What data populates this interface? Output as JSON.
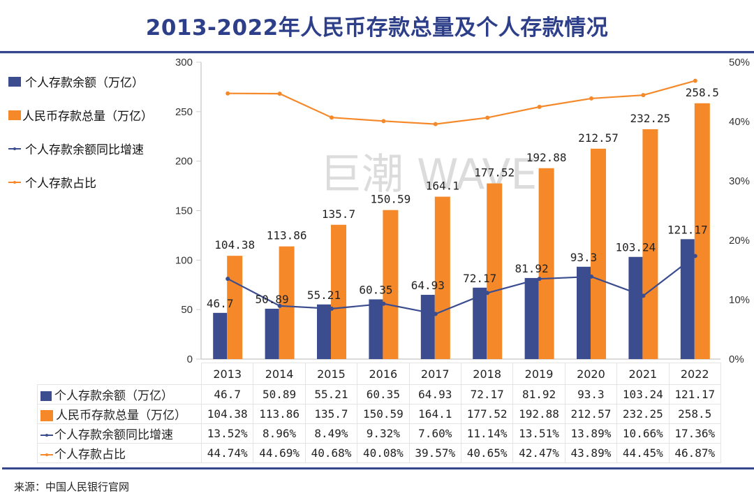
{
  "header": {
    "title": "2013-2022年人民币存款总量及个人存款情况"
  },
  "watermark": "巨潮 WAVE",
  "footer": {
    "source": "来源：中国人民银行官网"
  },
  "colors": {
    "title": "#2e3f8a",
    "personal_deposit": "#3b4d8f",
    "total_deposit": "#f5892a",
    "growth_line": "#3b4d8f",
    "share_line": "#f5892a",
    "rule": "#34468c"
  },
  "legend": [
    {
      "label": "个人存款余额（万亿）",
      "kind": "bar",
      "color": "#3b4d8f"
    },
    {
      "label": "人民币存款总量（万亿）",
      "kind": "bar",
      "color": "#f5892a"
    },
    {
      "label": "个人存款余额同比增速",
      "kind": "line",
      "color": "#3b4d8f"
    },
    {
      "label": "个人存款占比",
      "kind": "line",
      "color": "#f5892a"
    }
  ],
  "chart_data": {
    "type": "bar",
    "title": "2013-2022年人民币存款总量及个人存款情况",
    "categories": [
      "2013",
      "2014",
      "2015",
      "2016",
      "2017",
      "2018",
      "2019",
      "2020",
      "2021",
      "2022"
    ],
    "left_axis": {
      "ylim": [
        0,
        300
      ],
      "ticks": [
        "0",
        "50",
        "100",
        "150",
        "200",
        "250",
        "300"
      ],
      "unit": "万亿"
    },
    "right_axis": {
      "ylim": [
        0,
        50
      ],
      "ticks": [
        "0%",
        "10%",
        "20%",
        "30%",
        "40%",
        "50%"
      ],
      "unit": "%"
    },
    "grid": false,
    "legend_position": "left",
    "series": [
      {
        "name": "个人存款余额（万亿）",
        "type": "bar",
        "axis": "left",
        "values": [
          46.7,
          50.89,
          55.21,
          60.35,
          64.93,
          72.17,
          81.92,
          93.3,
          103.24,
          121.17
        ],
        "labels": [
          "46.7",
          "50.89",
          "55.21",
          "60.35",
          "64.93",
          "72.17",
          "81.92",
          "93.3",
          "103.24",
          "121.17"
        ]
      },
      {
        "name": "人民币存款总量（万亿）",
        "type": "bar",
        "axis": "left",
        "values": [
          104.38,
          113.86,
          135.7,
          150.59,
          164.1,
          177.52,
          192.88,
          212.57,
          232.25,
          258.5
        ],
        "labels": [
          "104.38",
          "113.86",
          "135.7",
          "150.59",
          "164.1",
          "177.52",
          "192.88",
          "212.57",
          "232.25",
          "258.5"
        ]
      },
      {
        "name": "个人存款余额同比增速",
        "type": "line",
        "axis": "right",
        "values": [
          13.52,
          8.96,
          8.49,
          9.32,
          7.6,
          11.14,
          13.51,
          13.89,
          10.66,
          17.36
        ],
        "labels": [
          "13.52%",
          "8.96%",
          "8.49%",
          "9.32%",
          "7.60%",
          "11.14%",
          "13.51%",
          "13.89%",
          "10.66%",
          "17.36%"
        ]
      },
      {
        "name": "个人存款占比",
        "type": "line",
        "axis": "right",
        "values": [
          44.74,
          44.69,
          40.68,
          40.08,
          39.57,
          40.65,
          42.47,
          43.89,
          44.45,
          46.87
        ],
        "labels": [
          "44.74%",
          "44.69%",
          "40.68%",
          "40.08%",
          "39.57%",
          "40.65%",
          "42.47%",
          "43.89%",
          "44.45%",
          "46.87%"
        ]
      }
    ]
  }
}
